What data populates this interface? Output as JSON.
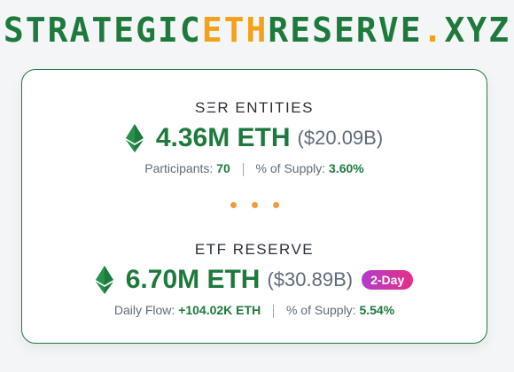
{
  "logo": {
    "part1": "STRATEGIC",
    "part2": "ETH",
    "part3": "RESERVE",
    "part4": ".",
    "part5": "XYZ"
  },
  "colors": {
    "brand_green": "#1d7a3c",
    "accent_orange": "#f3a118",
    "muted_gray": "#5f6b7a",
    "badge_gradient_start": "#b13ccc",
    "badge_gradient_end": "#e52f86"
  },
  "ser": {
    "title": "SΞR ENTITIES",
    "amount": "4.36M ETH",
    "usd": "($20.09B)",
    "stat1_label": "Participants:",
    "stat1_value": "70",
    "stat2_label": "% of Supply:",
    "stat2_value": "3.60%",
    "icon": "ethereum-icon"
  },
  "etf": {
    "title": "ETF RESERVE",
    "amount": "6.70M ETH",
    "usd": "($30.89B)",
    "badge": "2-Day",
    "stat1_label": "Daily Flow:",
    "stat1_value": "+104.02K ETH",
    "stat2_label": "% of Supply:",
    "stat2_value": "5.54%",
    "icon": "ethereum-icon"
  }
}
